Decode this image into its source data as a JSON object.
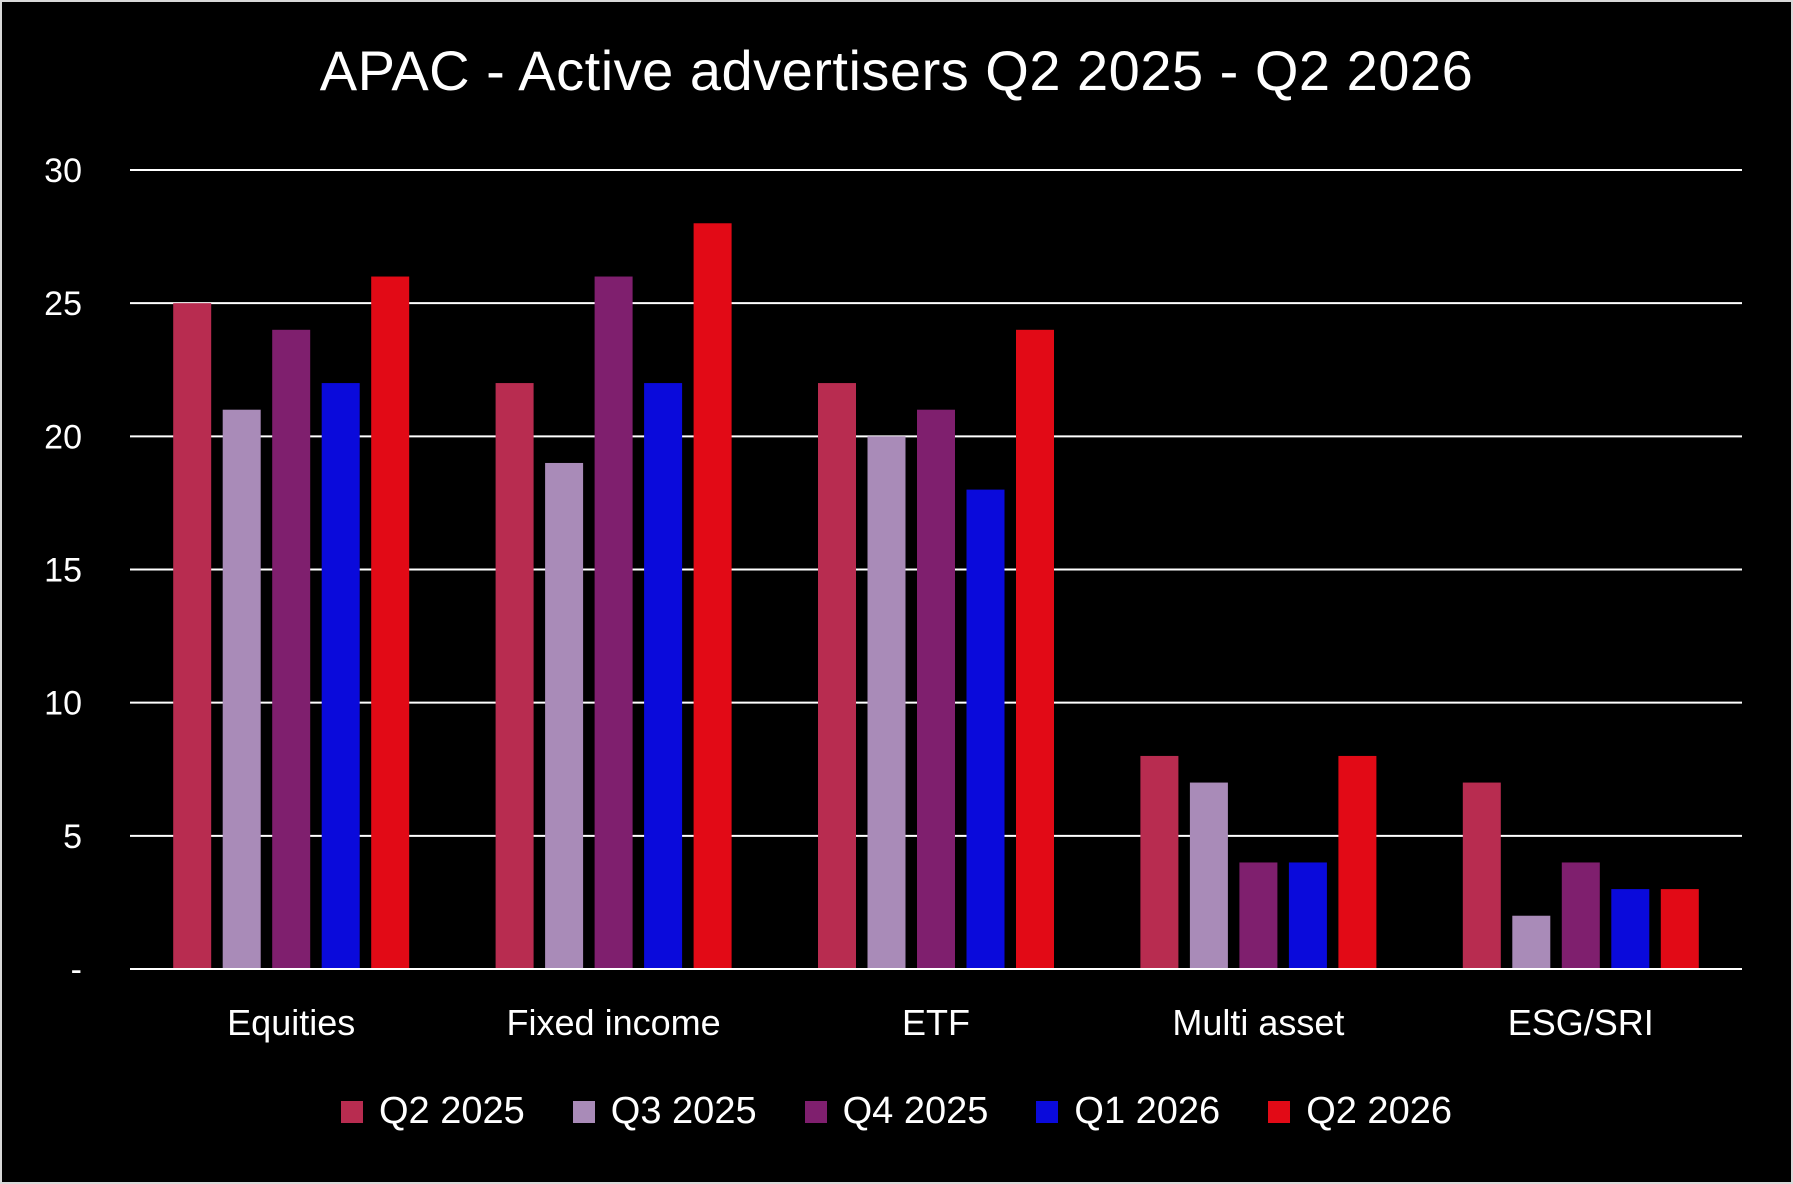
{
  "chart_data": {
    "type": "bar",
    "title": "APAC - Active advertisers Q2 2025 - Q2 2026",
    "xlabel": "",
    "ylabel": "",
    "categories": [
      "Equities",
      "Fixed income",
      "ETF",
      "Multi asset",
      "ESG/SRI"
    ],
    "series": [
      {
        "name": "Q2 2025",
        "color": "#b82c50",
        "values": [
          25,
          22,
          22,
          8,
          7
        ]
      },
      {
        "name": "Q3 2025",
        "color": "#a98bb8",
        "values": [
          21,
          19,
          20,
          7,
          2
        ]
      },
      {
        "name": "Q4 2025",
        "color": "#7f1f6e",
        "values": [
          24,
          26,
          21,
          4,
          4
        ]
      },
      {
        "name": "Q1 2026",
        "color": "#0a0adb",
        "values": [
          22,
          22,
          18,
          4,
          3
        ]
      },
      {
        "name": "Q2 2026",
        "color": "#e20a16",
        "values": [
          26,
          28,
          24,
          8,
          3
        ]
      }
    ],
    "ylim": [
      0,
      30
    ],
    "yticks": [
      0,
      5,
      10,
      15,
      20,
      25,
      30
    ],
    "ytick_labels": [
      "-",
      "5",
      "10",
      "15",
      "20",
      "25",
      "30"
    ],
    "grid": true,
    "legend_position": "bottom",
    "background": "#000000",
    "text_color": "#ffffff",
    "grid_color": "#ffffff"
  }
}
